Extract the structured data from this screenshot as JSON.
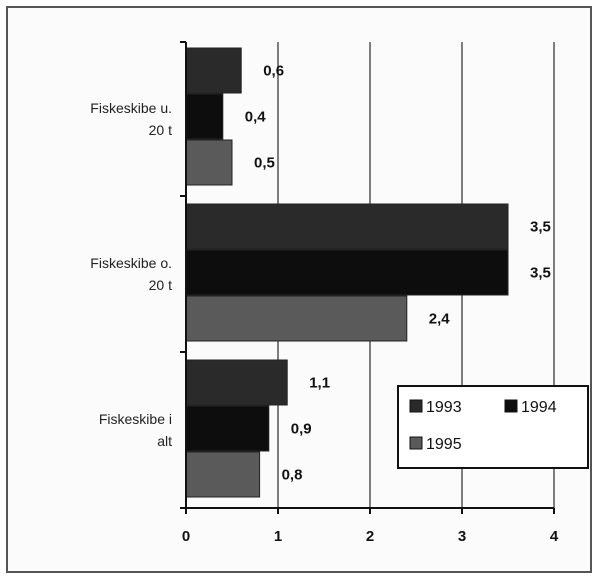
{
  "chart_data": {
    "type": "bar",
    "orientation": "horizontal",
    "categories": [
      "Fiskeskibe u. 20 t",
      "Fiskeskibe o. 20 t",
      "Fiskeskibe i alt"
    ],
    "category_lines": [
      [
        "Fiskeskibe u.",
        "20 t"
      ],
      [
        "Fiskeskibe o.",
        "20 t"
      ],
      [
        "Fiskeskibe i",
        "alt"
      ]
    ],
    "series": [
      {
        "name": "1993",
        "values": [
          0.6,
          3.5,
          1.1
        ],
        "labels": [
          "0,6",
          "3,5",
          "1,1"
        ],
        "color": "#2a2a2a"
      },
      {
        "name": "1994",
        "values": [
          0.4,
          3.5,
          0.9
        ],
        "labels": [
          "0,4",
          "3,5",
          "0,9"
        ],
        "color": "#0d0d0d"
      },
      {
        "name": "1995",
        "values": [
          0.5,
          2.4,
          0.8
        ],
        "labels": [
          "0,5",
          "2,4",
          "0,8"
        ],
        "color": "#5a5a5a"
      }
    ],
    "xlim": [
      0,
      4
    ],
    "xticks": [
      "0",
      "1",
      "2",
      "3",
      "4"
    ],
    "grid": true,
    "legend_position": "lower-right",
    "title": "",
    "xlabel": "",
    "ylabel": ""
  }
}
